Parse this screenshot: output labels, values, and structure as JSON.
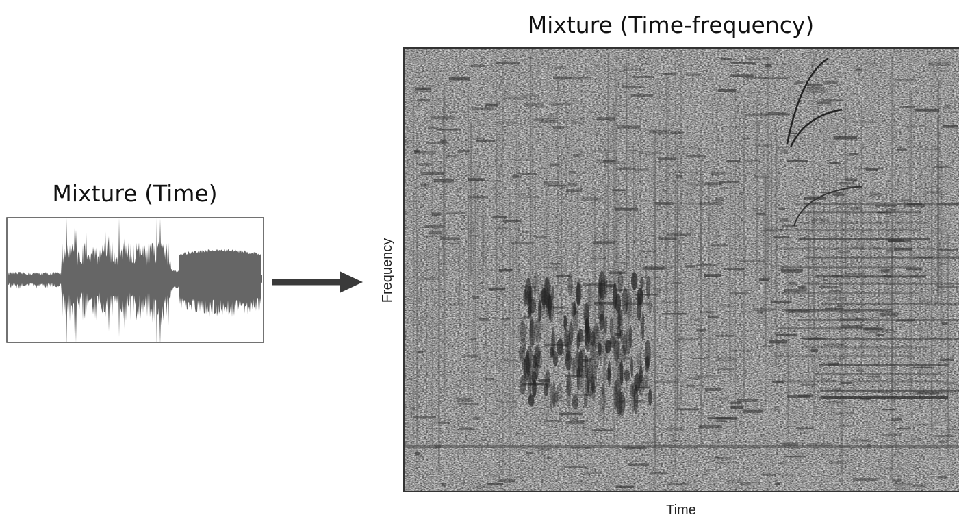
{
  "left": {
    "title": "Mixture (Time)"
  },
  "right": {
    "title": "Mixture (Time-frequency)",
    "y_label": "Frequency",
    "x_label": "Time"
  }
}
